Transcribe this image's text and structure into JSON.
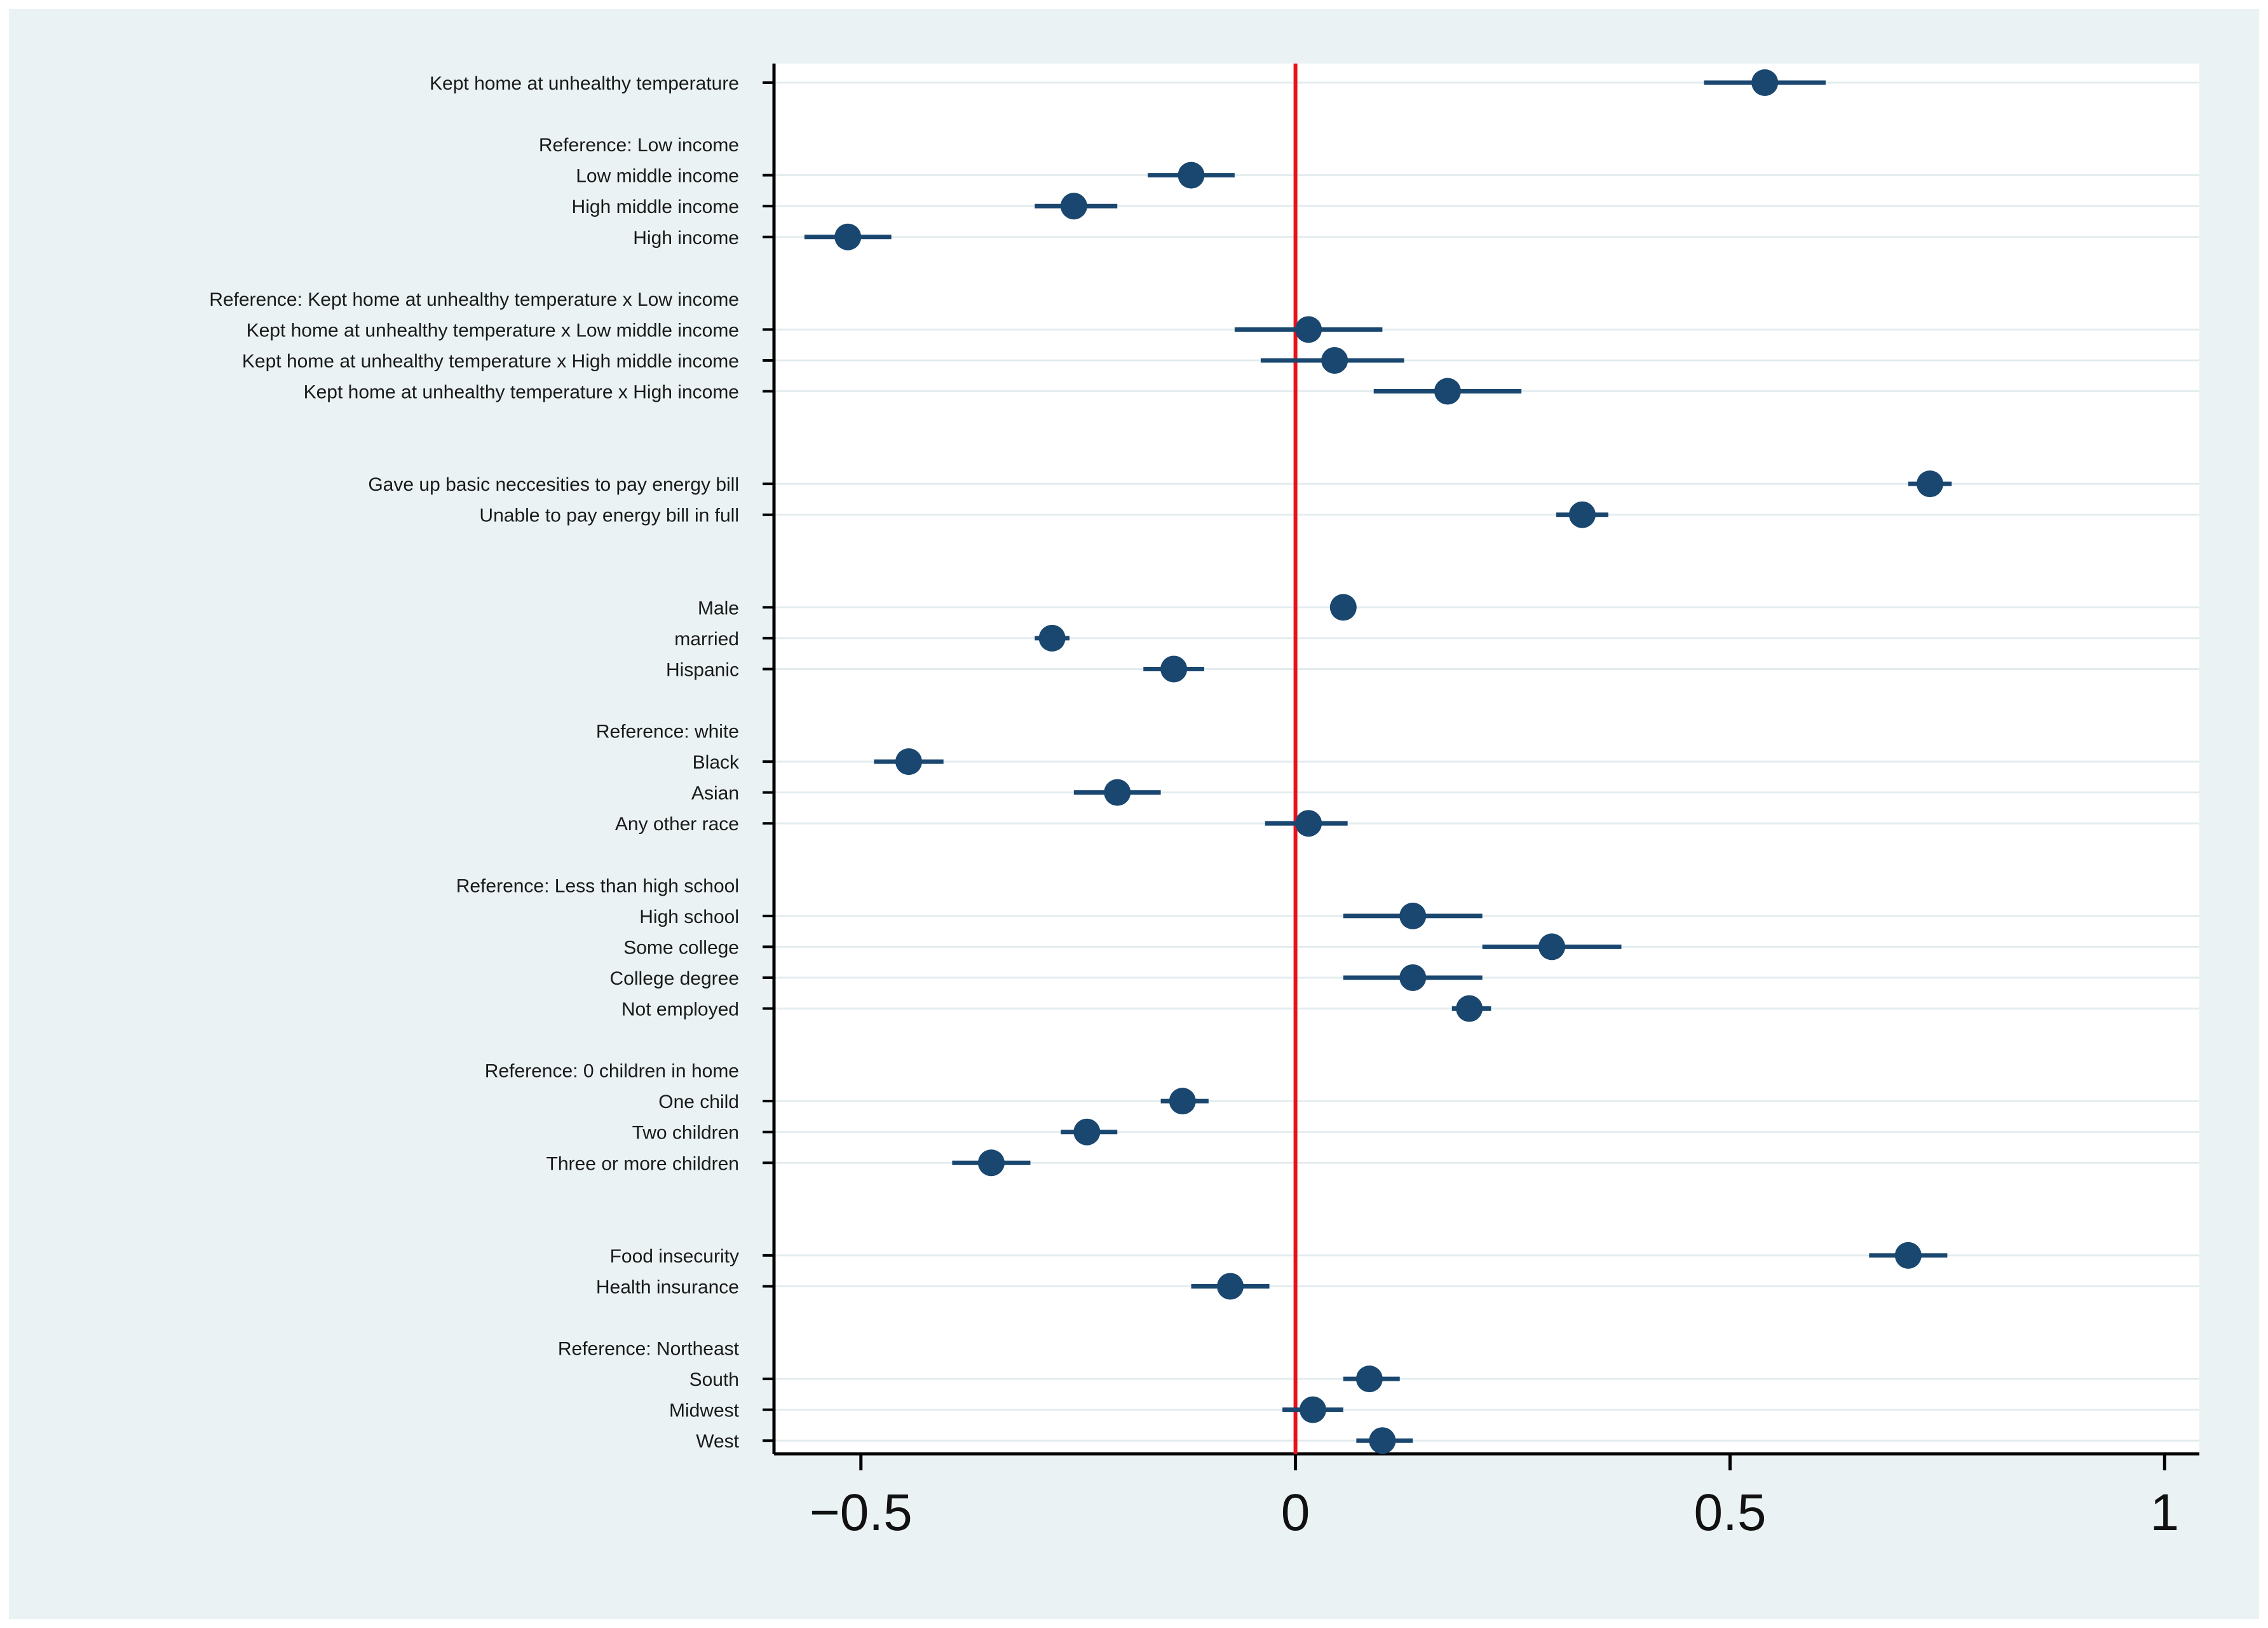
{
  "chart_data": {
    "type": "scatter",
    "subtype": "coefficient-plot",
    "title": "",
    "xlabel": "",
    "ylabel": "",
    "xlim": [
      -0.6,
      1.04
    ],
    "x_ticks": [
      {
        "value": -0.5,
        "label": "−0.5"
      },
      {
        "value": 0,
        "label": "0"
      },
      {
        "value": 0.5,
        "label": "0.5"
      },
      {
        "value": 1,
        "label": "1"
      }
    ],
    "reference_line": 0,
    "rows": [
      {
        "label": "Kept home at unhealthy temperature",
        "estimate": 0.54,
        "ci_low": 0.47,
        "ci_high": 0.61
      },
      {
        "label": "Reference: Low income",
        "reference": true
      },
      {
        "label": "Low middle income",
        "estimate": -0.12,
        "ci_low": -0.17,
        "ci_high": -0.07
      },
      {
        "label": "High middle income",
        "estimate": -0.255,
        "ci_low": -0.3,
        "ci_high": -0.205
      },
      {
        "label": "High income",
        "estimate": -0.515,
        "ci_low": -0.565,
        "ci_high": -0.465
      },
      {
        "label": "Reference: Kept home at unhealthy temperature x Low income",
        "reference": true
      },
      {
        "label": "Kept home at unhealthy temperature x Low middle income",
        "estimate": 0.015,
        "ci_low": -0.07,
        "ci_high": 0.1
      },
      {
        "label": "Kept home at unhealthy temperature x High middle income",
        "estimate": 0.045,
        "ci_low": -0.04,
        "ci_high": 0.125
      },
      {
        "label": "Kept home at unhealthy temperature x High income",
        "estimate": 0.175,
        "ci_low": 0.09,
        "ci_high": 0.26
      },
      {
        "label": "Gave up basic neccesities to pay energy bill",
        "estimate": 0.73,
        "ci_low": 0.705,
        "ci_high": 0.755
      },
      {
        "label": "Unable to pay energy bill in full",
        "estimate": 0.33,
        "ci_low": 0.3,
        "ci_high": 0.36
      },
      {
        "label": "Male",
        "estimate": 0.055,
        "ci_low": 0.04,
        "ci_high": 0.07
      },
      {
        "label": "married",
        "estimate": -0.28,
        "ci_low": -0.3,
        "ci_high": -0.26
      },
      {
        "label": "Hispanic",
        "estimate": -0.14,
        "ci_low": -0.175,
        "ci_high": -0.105
      },
      {
        "label": "Reference: white",
        "reference": true
      },
      {
        "label": "Black",
        "estimate": -0.445,
        "ci_low": -0.485,
        "ci_high": -0.405
      },
      {
        "label": "Asian",
        "estimate": -0.205,
        "ci_low": -0.255,
        "ci_high": -0.155
      },
      {
        "label": "Any other race",
        "estimate": 0.015,
        "ci_low": -0.035,
        "ci_high": 0.06
      },
      {
        "label": "Reference: Less than high school",
        "reference": true
      },
      {
        "label": "High school",
        "estimate": 0.135,
        "ci_low": 0.055,
        "ci_high": 0.215
      },
      {
        "label": "Some college",
        "estimate": 0.295,
        "ci_low": 0.215,
        "ci_high": 0.375
      },
      {
        "label": "College degree",
        "estimate": 0.135,
        "ci_low": 0.055,
        "ci_high": 0.215
      },
      {
        "label": "Not employed",
        "estimate": 0.2,
        "ci_low": 0.18,
        "ci_high": 0.225
      },
      {
        "label": "Reference: 0 children in home",
        "reference": true
      },
      {
        "label": "One child",
        "estimate": -0.13,
        "ci_low": -0.155,
        "ci_high": -0.1
      },
      {
        "label": "Two children",
        "estimate": -0.24,
        "ci_low": -0.27,
        "ci_high": -0.205
      },
      {
        "label": "Three or more children",
        "estimate": -0.35,
        "ci_low": -0.395,
        "ci_high": -0.305
      },
      {
        "label": "Food insecurity",
        "estimate": 0.705,
        "ci_low": 0.66,
        "ci_high": 0.75
      },
      {
        "label": "Health insurance",
        "estimate": -0.075,
        "ci_low": -0.12,
        "ci_high": -0.03
      },
      {
        "label": "Reference: Northeast",
        "reference": true
      },
      {
        "label": "South",
        "estimate": 0.085,
        "ci_low": 0.055,
        "ci_high": 0.12
      },
      {
        "label": "Midwest",
        "estimate": 0.02,
        "ci_low": -0.015,
        "ci_high": 0.055
      },
      {
        "label": "West",
        "estimate": 0.1,
        "ci_low": 0.07,
        "ci_high": 0.135
      }
    ]
  },
  "colors": {
    "outer_background": "#eaf2f3",
    "plot_background": "#ffffff",
    "marker": "#1a476f",
    "reference_line": "#e8121b",
    "gridline": "#e3ecee",
    "axis": "#000000"
  }
}
